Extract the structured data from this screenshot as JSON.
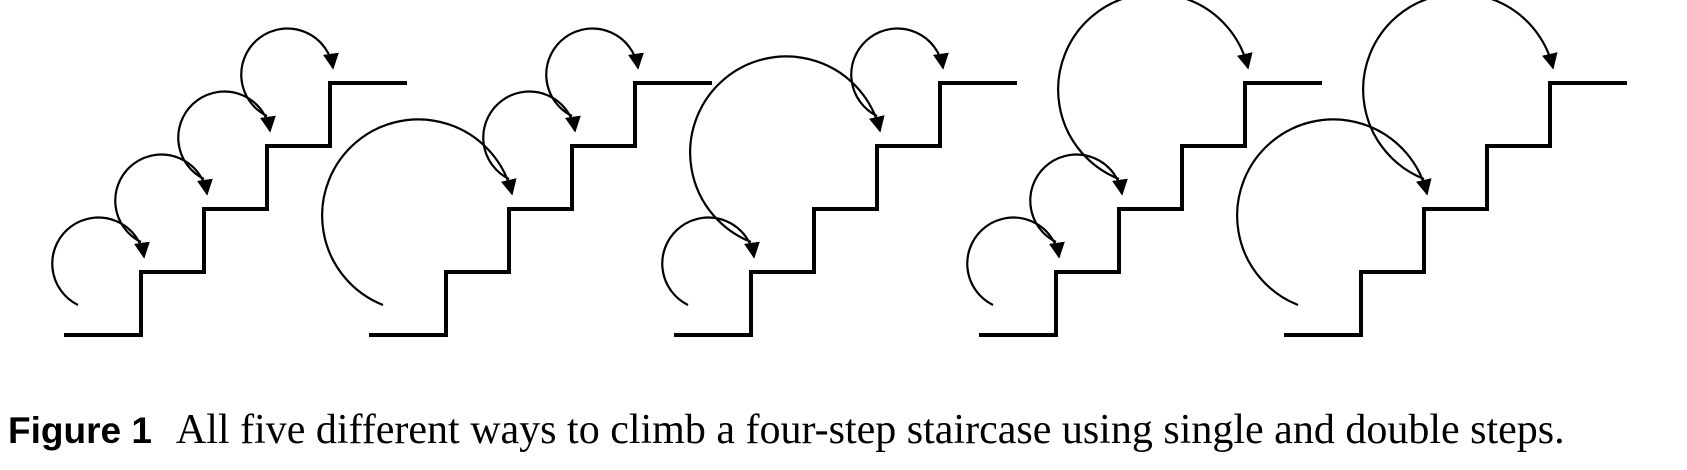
{
  "figure": {
    "label": "Figure 1",
    "caption": "All five different ways to climb a four-step staircase using single and double steps.",
    "stroke_color": "#000000",
    "step_count": 4,
    "ways": [
      {
        "name": "way-1-1-1-1",
        "steps": [
          1,
          1,
          1,
          1
        ]
      },
      {
        "name": "way-2-1-1",
        "steps": [
          2,
          1,
          1
        ]
      },
      {
        "name": "way-1-2-1",
        "steps": [
          1,
          2,
          1
        ]
      },
      {
        "name": "way-1-1-2",
        "steps": [
          1,
          1,
          2
        ]
      },
      {
        "name": "way-2-2",
        "steps": [
          2,
          2
        ]
      }
    ]
  }
}
